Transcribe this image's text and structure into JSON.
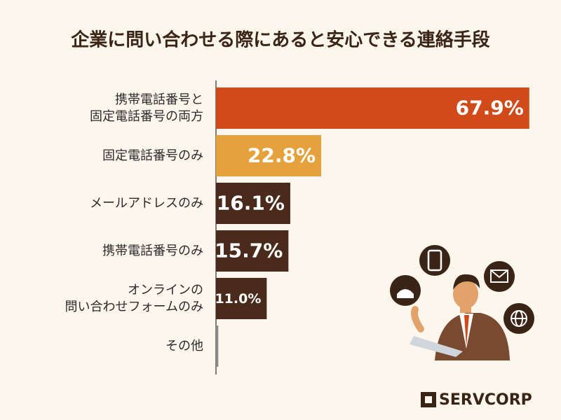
{
  "chart_data": {
    "type": "bar",
    "orientation": "horizontal",
    "title": "企業に問い合わせる際にあると安心できる連絡手段",
    "categories": [
      "携帯電話番号と\n固定電話番号の両方",
      "固定電話番号のみ",
      "メールアドレスのみ",
      "携帯電話番号のみ",
      "オンラインの\n問い合わせフォームのみ",
      "その他"
    ],
    "values": [
      67.9,
      22.8,
      16.1,
      15.7,
      11.0,
      0.5
    ],
    "value_labels": [
      "67.9%",
      "22.8%",
      "16.1%",
      "15.7%",
      "11.0%",
      null
    ],
    "colors": [
      "#d04a1a",
      "#e5a23c",
      "#4a2a1a",
      "#4a2a1a",
      "#4a2a1a",
      "#8a8a8a"
    ]
  },
  "logo": "SERVCORP"
}
